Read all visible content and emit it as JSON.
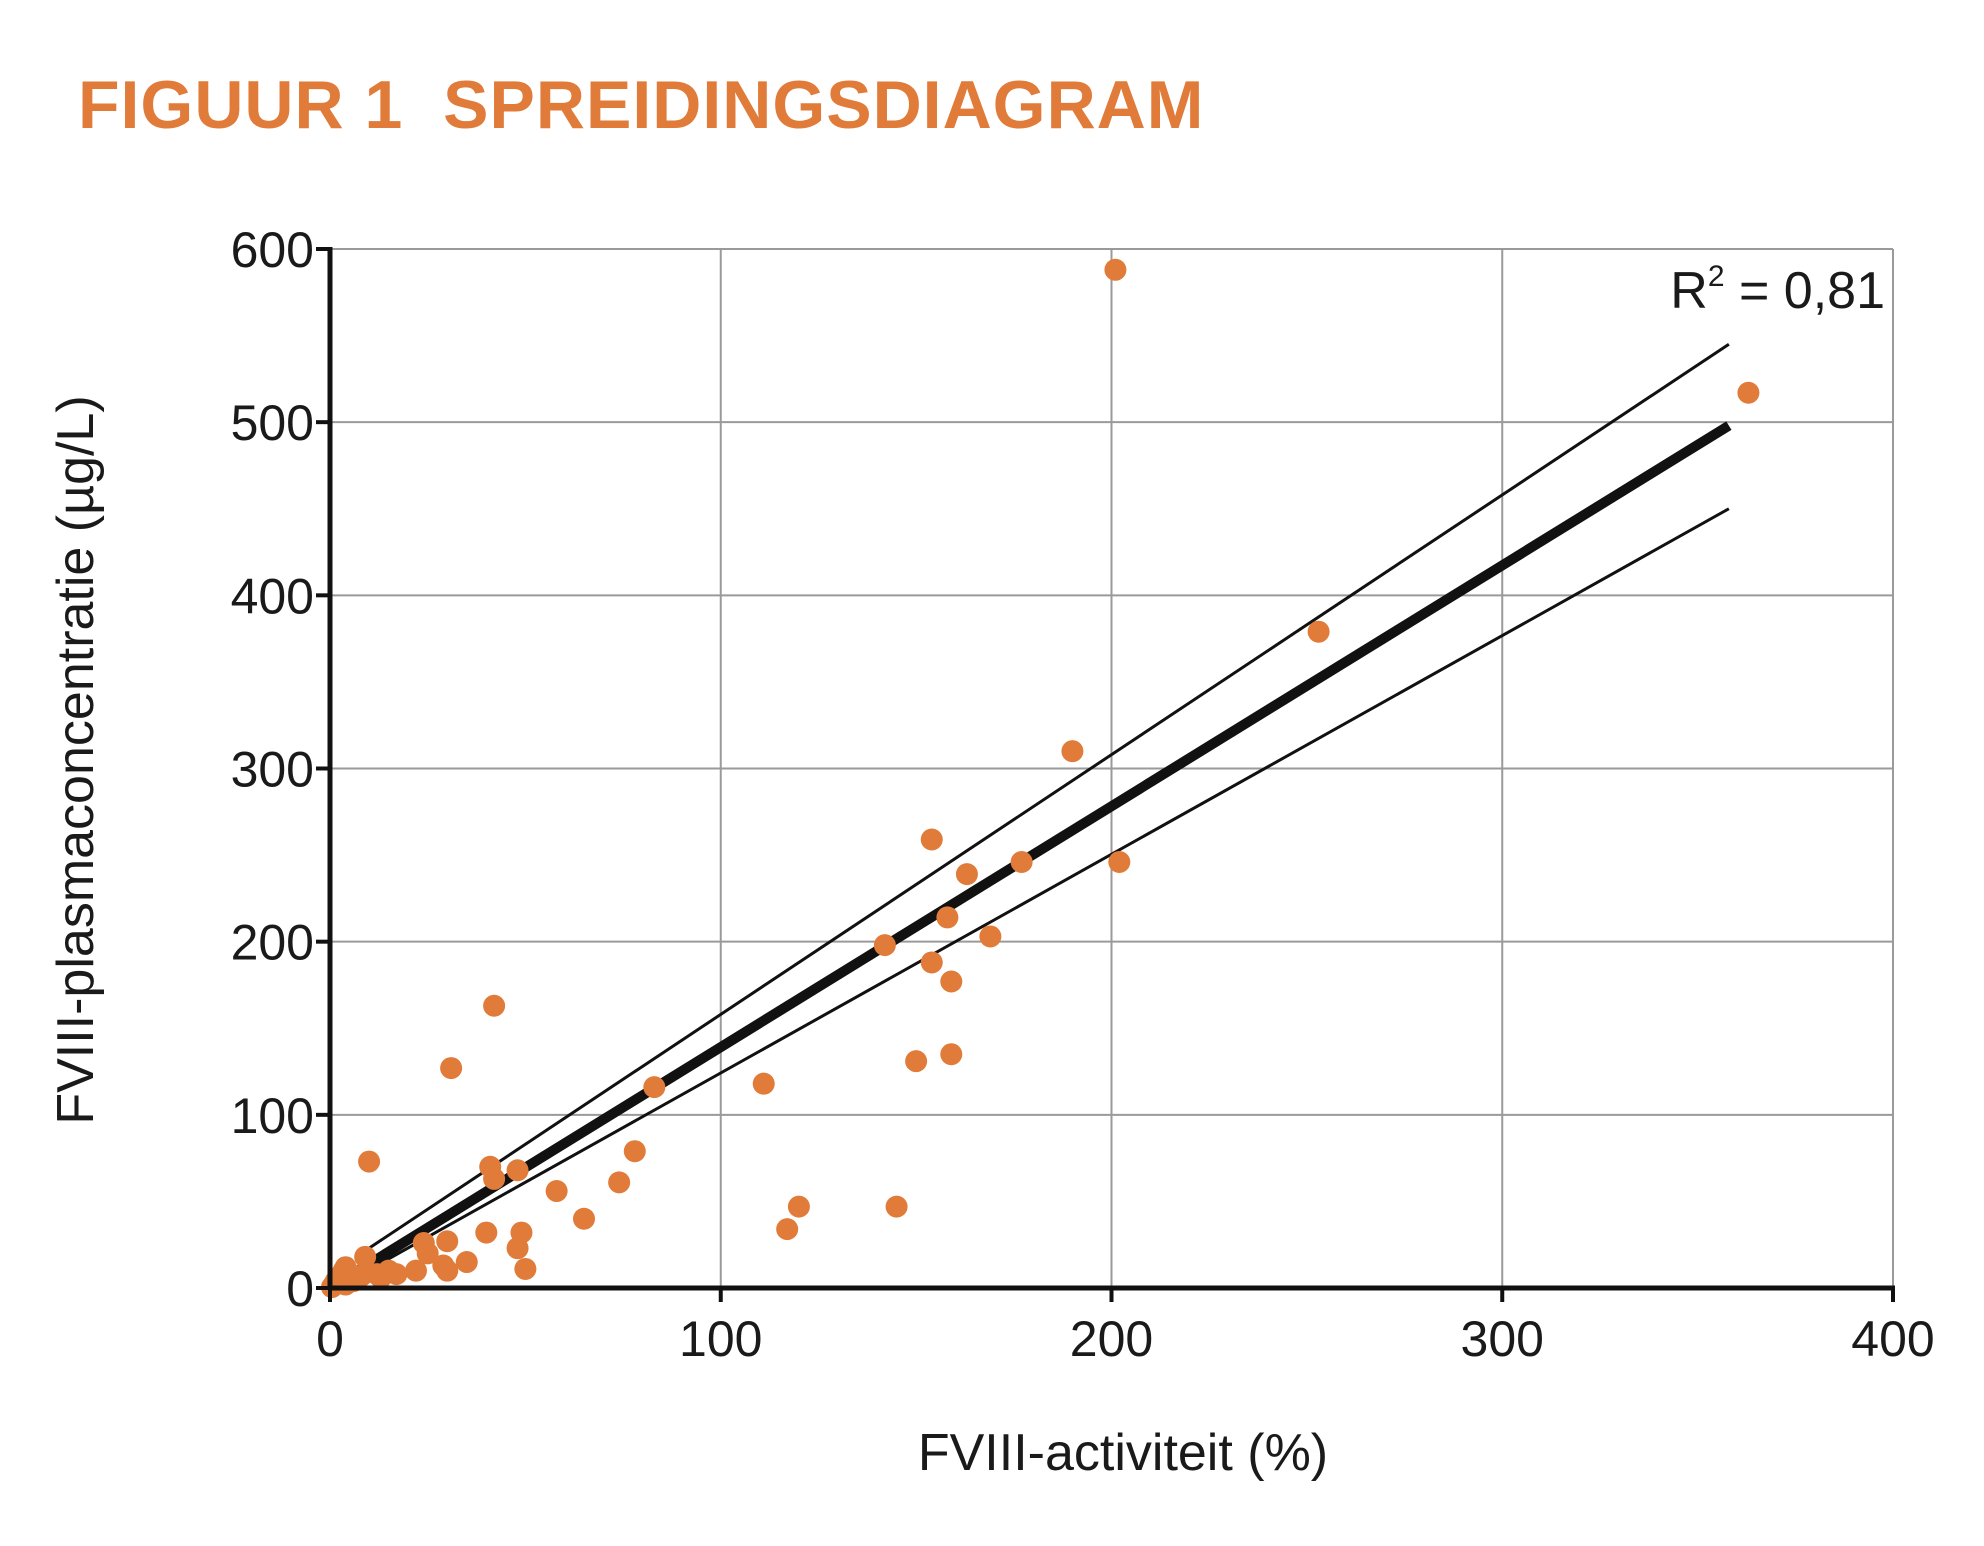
{
  "figure": {
    "title": "FIGUUR 1  SPREIDINGSDIAGRAM",
    "accent_color": "#e07b39"
  },
  "chart_data": {
    "type": "scatter",
    "title": "FIGUUR 1  SPREIDINGSDIAGRAM",
    "xlabel": "FVIII-activiteit (%)",
    "ylabel": "FVIII-plasmaconcentratie (µg/L)",
    "xlim": [
      0,
      400
    ],
    "ylim": [
      0,
      600
    ],
    "xticks": [
      0,
      100,
      200,
      300,
      400
    ],
    "yticks": [
      0,
      100,
      200,
      300,
      400,
      500,
      600
    ],
    "grid": true,
    "point_color": "#e07b39",
    "line_color": "#111111",
    "annotation": {
      "base": "R",
      "sup": "2",
      "rest": " = 0,81"
    },
    "regression": {
      "x": [
        0,
        358
      ],
      "y": [
        0,
        498
      ]
    },
    "upper_bound": {
      "x": [
        8,
        358
      ],
      "y": [
        20,
        545
      ]
    },
    "lower_bound": {
      "x": [
        8,
        358
      ],
      "y": [
        8,
        450
      ]
    },
    "points": [
      {
        "x": 0.5,
        "y": 0.5
      },
      {
        "x": 1,
        "y": 2
      },
      {
        "x": 1.5,
        "y": 4
      },
      {
        "x": 2,
        "y": 3
      },
      {
        "x": 2.5,
        "y": 6
      },
      {
        "x": 3,
        "y": 8
      },
      {
        "x": 3.5,
        "y": 10
      },
      {
        "x": 4,
        "y": 12
      },
      {
        "x": 4,
        "y": 2
      },
      {
        "x": 5,
        "y": 5
      },
      {
        "x": 6,
        "y": 4
      },
      {
        "x": 7,
        "y": 6
      },
      {
        "x": 8,
        "y": 7
      },
      {
        "x": 9,
        "y": 18
      },
      {
        "x": 10,
        "y": 73
      },
      {
        "x": 12,
        "y": 8
      },
      {
        "x": 13,
        "y": 6
      },
      {
        "x": 15,
        "y": 10
      },
      {
        "x": 17,
        "y": 8
      },
      {
        "x": 22,
        "y": 10
      },
      {
        "x": 24,
        "y": 26
      },
      {
        "x": 25,
        "y": 20
      },
      {
        "x": 29,
        "y": 13
      },
      {
        "x": 30,
        "y": 10
      },
      {
        "x": 30,
        "y": 27
      },
      {
        "x": 31,
        "y": 127
      },
      {
        "x": 35,
        "y": 15
      },
      {
        "x": 40,
        "y": 32
      },
      {
        "x": 41,
        "y": 70
      },
      {
        "x": 42,
        "y": 63
      },
      {
        "x": 42,
        "y": 163
      },
      {
        "x": 48,
        "y": 68
      },
      {
        "x": 48,
        "y": 23
      },
      {
        "x": 49,
        "y": 32
      },
      {
        "x": 50,
        "y": 11
      },
      {
        "x": 58,
        "y": 56
      },
      {
        "x": 65,
        "y": 40
      },
      {
        "x": 74,
        "y": 61
      },
      {
        "x": 78,
        "y": 79
      },
      {
        "x": 83,
        "y": 116
      },
      {
        "x": 111,
        "y": 118
      },
      {
        "x": 117,
        "y": 34
      },
      {
        "x": 120,
        "y": 47
      },
      {
        "x": 142,
        "y": 198
      },
      {
        "x": 145,
        "y": 47
      },
      {
        "x": 150,
        "y": 131
      },
      {
        "x": 154,
        "y": 188
      },
      {
        "x": 154,
        "y": 259
      },
      {
        "x": 158,
        "y": 214
      },
      {
        "x": 159,
        "y": 177
      },
      {
        "x": 159,
        "y": 135
      },
      {
        "x": 163,
        "y": 239
      },
      {
        "x": 169,
        "y": 203
      },
      {
        "x": 177,
        "y": 246
      },
      {
        "x": 190,
        "y": 310
      },
      {
        "x": 201,
        "y": 588
      },
      {
        "x": 202,
        "y": 246
      },
      {
        "x": 253,
        "y": 379
      },
      {
        "x": 363,
        "y": 517
      }
    ]
  }
}
